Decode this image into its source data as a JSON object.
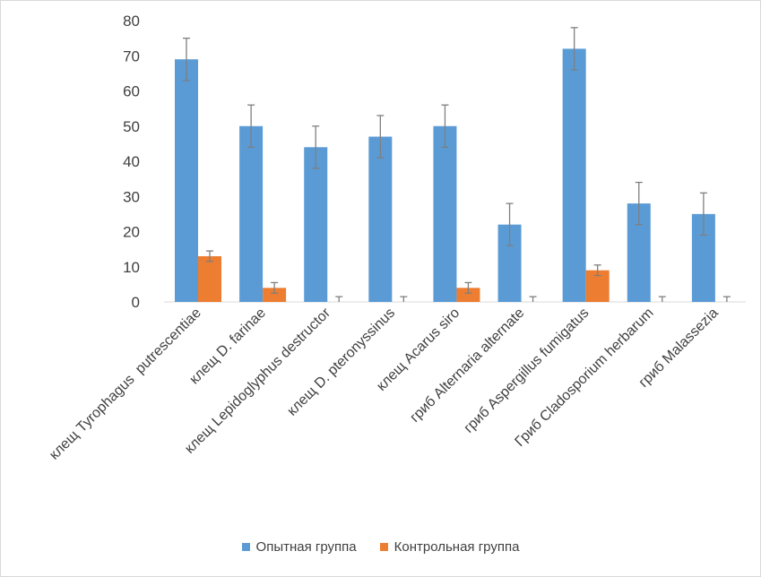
{
  "chart_data": {
    "type": "bar",
    "title": "",
    "xlabel": "",
    "ylabel": "",
    "ylim": [
      0,
      80
    ],
    "yticks": [
      "0",
      "10",
      "20",
      "30",
      "40",
      "50",
      "60",
      "70",
      "80"
    ],
    "grid": false,
    "legend_position": "bottom",
    "categories": [
      "клещ Tyrophagus  putrescentiae",
      "клещ D. farinae",
      "клещ Lepidoglyphus destructor",
      "клещ D. pteronyssinus",
      "клещ Acarus siro",
      "гриб Alternaria alternate",
      "гриб Aspergillus fumigatus",
      "Гриб Cladosporium herbarum",
      "гриб Malassezia"
    ],
    "series": [
      {
        "name": "Опытная группа",
        "color": "#5b9bd5",
        "values": [
          69,
          50,
          44,
          47,
          50,
          22,
          72,
          28,
          25
        ],
        "error": [
          6,
          6,
          6,
          6,
          6,
          6,
          6,
          6,
          6
        ]
      },
      {
        "name": "Контрольная группа",
        "color": "#ed7d31",
        "values": [
          13,
          4,
          0,
          0,
          4,
          0,
          9,
          0,
          0
        ],
        "error": [
          1.5,
          1.5,
          1.5,
          1.5,
          1.5,
          1.5,
          1.5,
          1.5,
          1.5
        ]
      }
    ]
  }
}
